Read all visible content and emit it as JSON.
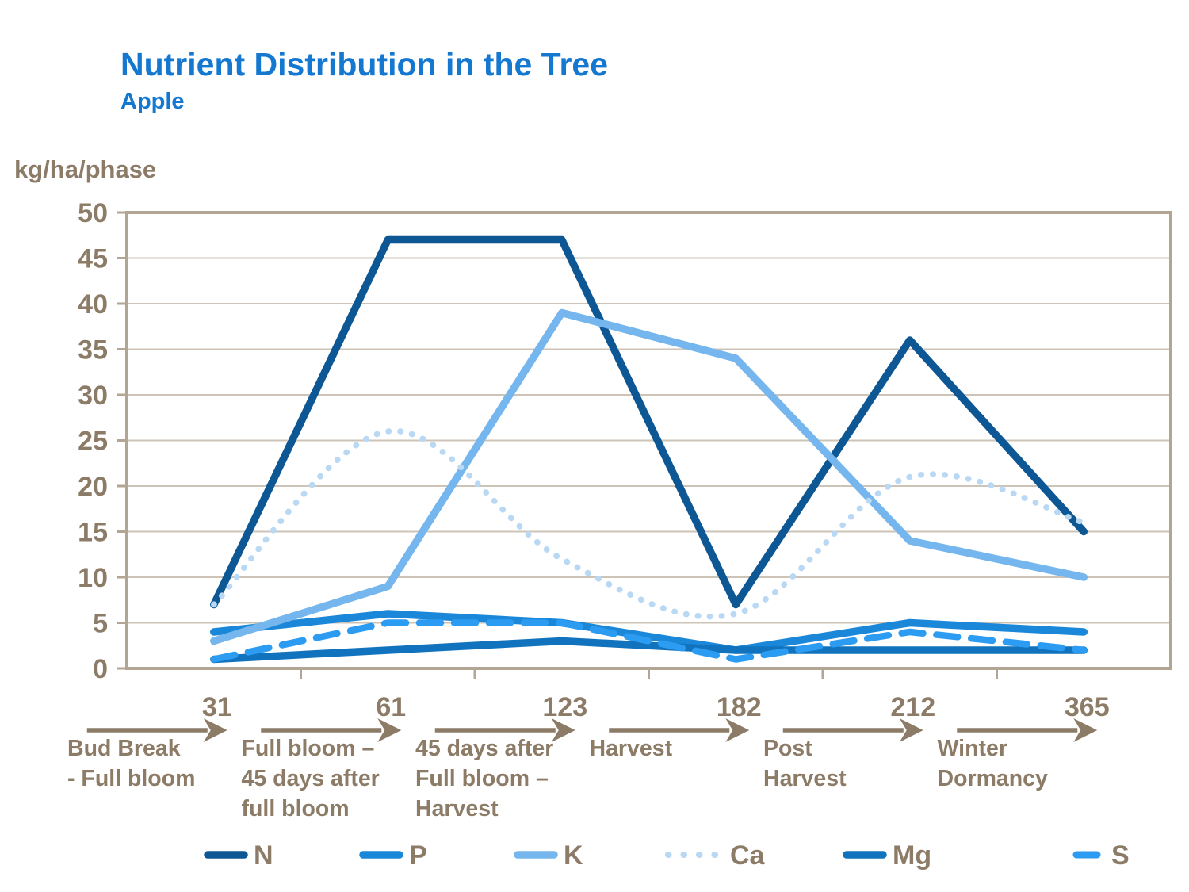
{
  "title": "Nutrient Distribution in the Tree",
  "subtitle": "Apple",
  "y_axis_unit": "kg/ha/phase",
  "colors": {
    "title_blue": "#1477D0",
    "text_brown": "#8C7B66",
    "grid": "#CDC3B7",
    "axis": "#B2A593"
  },
  "chart_data": {
    "type": "line",
    "title": "Nutrient Distribution in the Tree",
    "subtitle": "Apple",
    "ylabel": "kg/ha/phase",
    "ylim": [
      0,
      50
    ],
    "y_tick_step": 5,
    "y_tick_labels": [
      "0",
      "5",
      "10",
      "15",
      "20",
      "25",
      "30",
      "35",
      "40",
      "45",
      "50"
    ],
    "grid": true,
    "legend_position": "bottom",
    "x": [
      31,
      61,
      123,
      182,
      212,
      365
    ],
    "x_tick_labels": [
      "31",
      "61",
      "123",
      "182",
      "212",
      "365"
    ],
    "x_phase_labels": [
      [
        "Bud Break",
        "- Full bloom"
      ],
      [
        "Full bloom –",
        "45 days after",
        "full bloom"
      ],
      [
        "45 days after",
        "Full bloom –",
        "Harvest"
      ],
      [
        "Harvest"
      ],
      [
        "Post",
        "Harvest"
      ],
      [
        "Winter",
        "Dormancy"
      ]
    ],
    "series": [
      {
        "name": "N",
        "color": "#0D5795",
        "style": "solid",
        "smooth": false,
        "values": [
          7,
          47,
          47,
          7,
          36,
          15
        ]
      },
      {
        "name": "P",
        "color": "#1B87D9",
        "style": "solid",
        "smooth": false,
        "values": [
          4,
          6,
          5,
          2,
          5,
          4
        ]
      },
      {
        "name": "K",
        "color": "#74B6ED",
        "style": "solid",
        "smooth": false,
        "values": [
          3,
          9,
          39,
          34,
          14,
          10
        ]
      },
      {
        "name": "Ca",
        "color": "#B8D8F4",
        "style": "dotted",
        "smooth": true,
        "values": [
          7,
          26,
          12,
          6,
          21,
          16
        ]
      },
      {
        "name": "Mg",
        "color": "#1173BD",
        "style": "solid",
        "smooth": false,
        "values": [
          1,
          2,
          3,
          2,
          2,
          2
        ]
      },
      {
        "name": "S",
        "color": "#2C9BF2",
        "style": "dashed",
        "smooth": false,
        "values": [
          1,
          5,
          5,
          1,
          4,
          2
        ]
      }
    ]
  }
}
